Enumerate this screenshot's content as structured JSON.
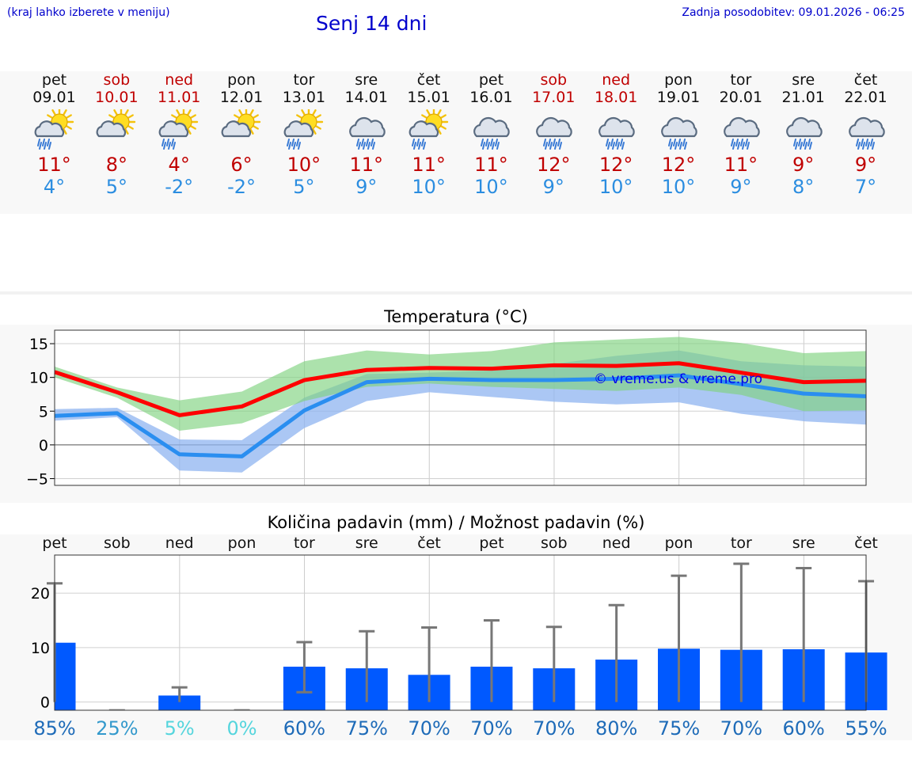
{
  "header": {
    "hint": "(kraj lahko izberete v meniju)",
    "title": "Senj 14 dni",
    "updated": "Zadnja posodobitev: 09.01.2026 - 06:25"
  },
  "colors": {
    "text_blue": "#0000cc",
    "weekend_red": "#c00000",
    "tmax": "#c00000",
    "tmin": "#2b8de0",
    "bar": "#0059ff",
    "maxline": "#ff0000",
    "minline": "#2a8ef0"
  },
  "forecast": {
    "days": [
      {
        "name": "pet",
        "date": "09.01",
        "weekend": false,
        "icon": "sun-cloud-rain-icon",
        "tmax": "11°",
        "tmin": "4°"
      },
      {
        "name": "sob",
        "date": "10.01",
        "weekend": true,
        "icon": "sun-cloud-icon",
        "tmax": "8°",
        "tmin": "5°"
      },
      {
        "name": "ned",
        "date": "11.01",
        "weekend": true,
        "icon": "sun-cloud-rain-icon",
        "tmax": "4°",
        "tmin": "-2°"
      },
      {
        "name": "pon",
        "date": "12.01",
        "weekend": false,
        "icon": "sun-cloud-icon",
        "tmax": "6°",
        "tmin": "-2°"
      },
      {
        "name": "tor",
        "date": "13.01",
        "weekend": false,
        "icon": "sun-cloud-rain-icon",
        "tmax": "10°",
        "tmin": "5°"
      },
      {
        "name": "sre",
        "date": "14.01",
        "weekend": false,
        "icon": "cloud-rain-icon",
        "tmax": "11°",
        "tmin": "9°"
      },
      {
        "name": "čet",
        "date": "15.01",
        "weekend": false,
        "icon": "sun-cloud-rain-icon",
        "tmax": "11°",
        "tmin": "10°"
      },
      {
        "name": "pet",
        "date": "16.01",
        "weekend": false,
        "icon": "cloud-rain-icon",
        "tmax": "11°",
        "tmin": "10°"
      },
      {
        "name": "sob",
        "date": "17.01",
        "weekend": true,
        "icon": "cloud-rain-icon",
        "tmax": "12°",
        "tmin": "9°"
      },
      {
        "name": "ned",
        "date": "18.01",
        "weekend": true,
        "icon": "cloud-rain-icon",
        "tmax": "12°",
        "tmin": "10°"
      },
      {
        "name": "pon",
        "date": "19.01",
        "weekend": false,
        "icon": "cloud-rain-icon",
        "tmax": "12°",
        "tmin": "10°"
      },
      {
        "name": "tor",
        "date": "20.01",
        "weekend": false,
        "icon": "cloud-rain-icon",
        "tmax": "11°",
        "tmin": "9°"
      },
      {
        "name": "sre",
        "date": "21.01",
        "weekend": false,
        "icon": "cloud-rain-icon",
        "tmax": "9°",
        "tmin": "8°"
      },
      {
        "name": "čet",
        "date": "22.01",
        "weekend": false,
        "icon": "cloud-rain-icon",
        "tmax": "9°",
        "tmin": "7°"
      }
    ]
  },
  "chart_data": [
    {
      "type": "line",
      "title": "Temperatura (°C)",
      "watermark": "© vreme.us & vreme.pro",
      "ylim": [
        -6,
        17
      ],
      "yticks": [
        -5,
        0,
        5,
        10,
        15
      ],
      "ytick_labels": [
        "−5",
        "0",
        "5",
        "10",
        "15"
      ],
      "x": [
        0,
        1,
        2,
        3,
        4,
        5,
        6,
        7,
        8,
        9,
        10,
        11,
        12,
        13
      ],
      "series": [
        {
          "name": "max",
          "values": [
            10.8,
            7.8,
            4.4,
            5.7,
            9.6,
            11.1,
            11.4,
            11.3,
            11.8,
            11.7,
            12.1,
            10.7,
            9.3,
            9.5
          ]
        },
        {
          "name": "min",
          "values": [
            4.3,
            4.7,
            -1.4,
            -1.7,
            5.1,
            9.3,
            9.8,
            9.6,
            9.6,
            9.8,
            10.3,
            9.0,
            7.6,
            7.2
          ]
        }
      ],
      "bands": [
        {
          "name": "max-range",
          "upper": [
            11.6,
            8.5,
            6.6,
            7.9,
            12.4,
            14.0,
            13.4,
            13.9,
            15.2,
            15.6,
            16.0,
            15.1,
            13.6,
            13.9
          ],
          "lower": [
            10.0,
            7.0,
            2.1,
            3.2,
            6.5,
            8.6,
            9.1,
            8.6,
            8.3,
            8.0,
            8.5,
            7.4,
            5.0,
            5.1
          ]
        },
        {
          "name": "min-range",
          "upper": [
            5.3,
            5.5,
            0.8,
            0.7,
            7.0,
            10.5,
            10.7,
            11.0,
            12.0,
            13.2,
            14.0,
            12.4,
            11.8,
            11.6
          ],
          "lower": [
            3.6,
            4.1,
            -3.8,
            -4.1,
            2.5,
            6.5,
            7.8,
            7.1,
            6.4,
            6.0,
            6.3,
            4.6,
            3.5,
            3.0
          ]
        }
      ]
    },
    {
      "type": "bar",
      "title": "Količina padavin (mm) / Možnost padavin (%)",
      "categories": [
        "pet",
        "sob",
        "ned",
        "pon",
        "tor",
        "sre",
        "čet",
        "pet",
        "sob",
        "ned",
        "pon",
        "tor",
        "sre",
        "čet"
      ],
      "ylim": [
        -1.5,
        27
      ],
      "yticks": [
        0,
        10,
        20
      ],
      "values": [
        10.9,
        0.0,
        1.2,
        0.0,
        6.5,
        6.2,
        5.0,
        6.5,
        6.2,
        7.8,
        9.8,
        9.6,
        9.7,
        9.1
      ],
      "error_low": [
        0.0,
        0.0,
        0.0,
        0.0,
        1.8,
        0.0,
        0.0,
        0.0,
        0.0,
        0.0,
        0.0,
        0.0,
        0.0,
        0.0
      ],
      "error_high": [
        21.8,
        0.0,
        2.7,
        0.0,
        11.0,
        13.0,
        13.7,
        15.0,
        13.8,
        17.8,
        23.2,
        25.4,
        24.6,
        22.2
      ],
      "probabilities": [
        "85%",
        "25%",
        "5%",
        "0%",
        "60%",
        "75%",
        "70%",
        "70%",
        "70%",
        "80%",
        "75%",
        "70%",
        "60%",
        "55%"
      ],
      "probability_colors": [
        "#1e6bb8",
        "#3399cc",
        "#55d5dd",
        "#55d5dd",
        "#1e6bb8",
        "#1e6bb8",
        "#1e6bb8",
        "#1e6bb8",
        "#1e6bb8",
        "#1e6bb8",
        "#1e6bb8",
        "#1e6bb8",
        "#1e6bb8",
        "#1e6bb8"
      ]
    }
  ]
}
